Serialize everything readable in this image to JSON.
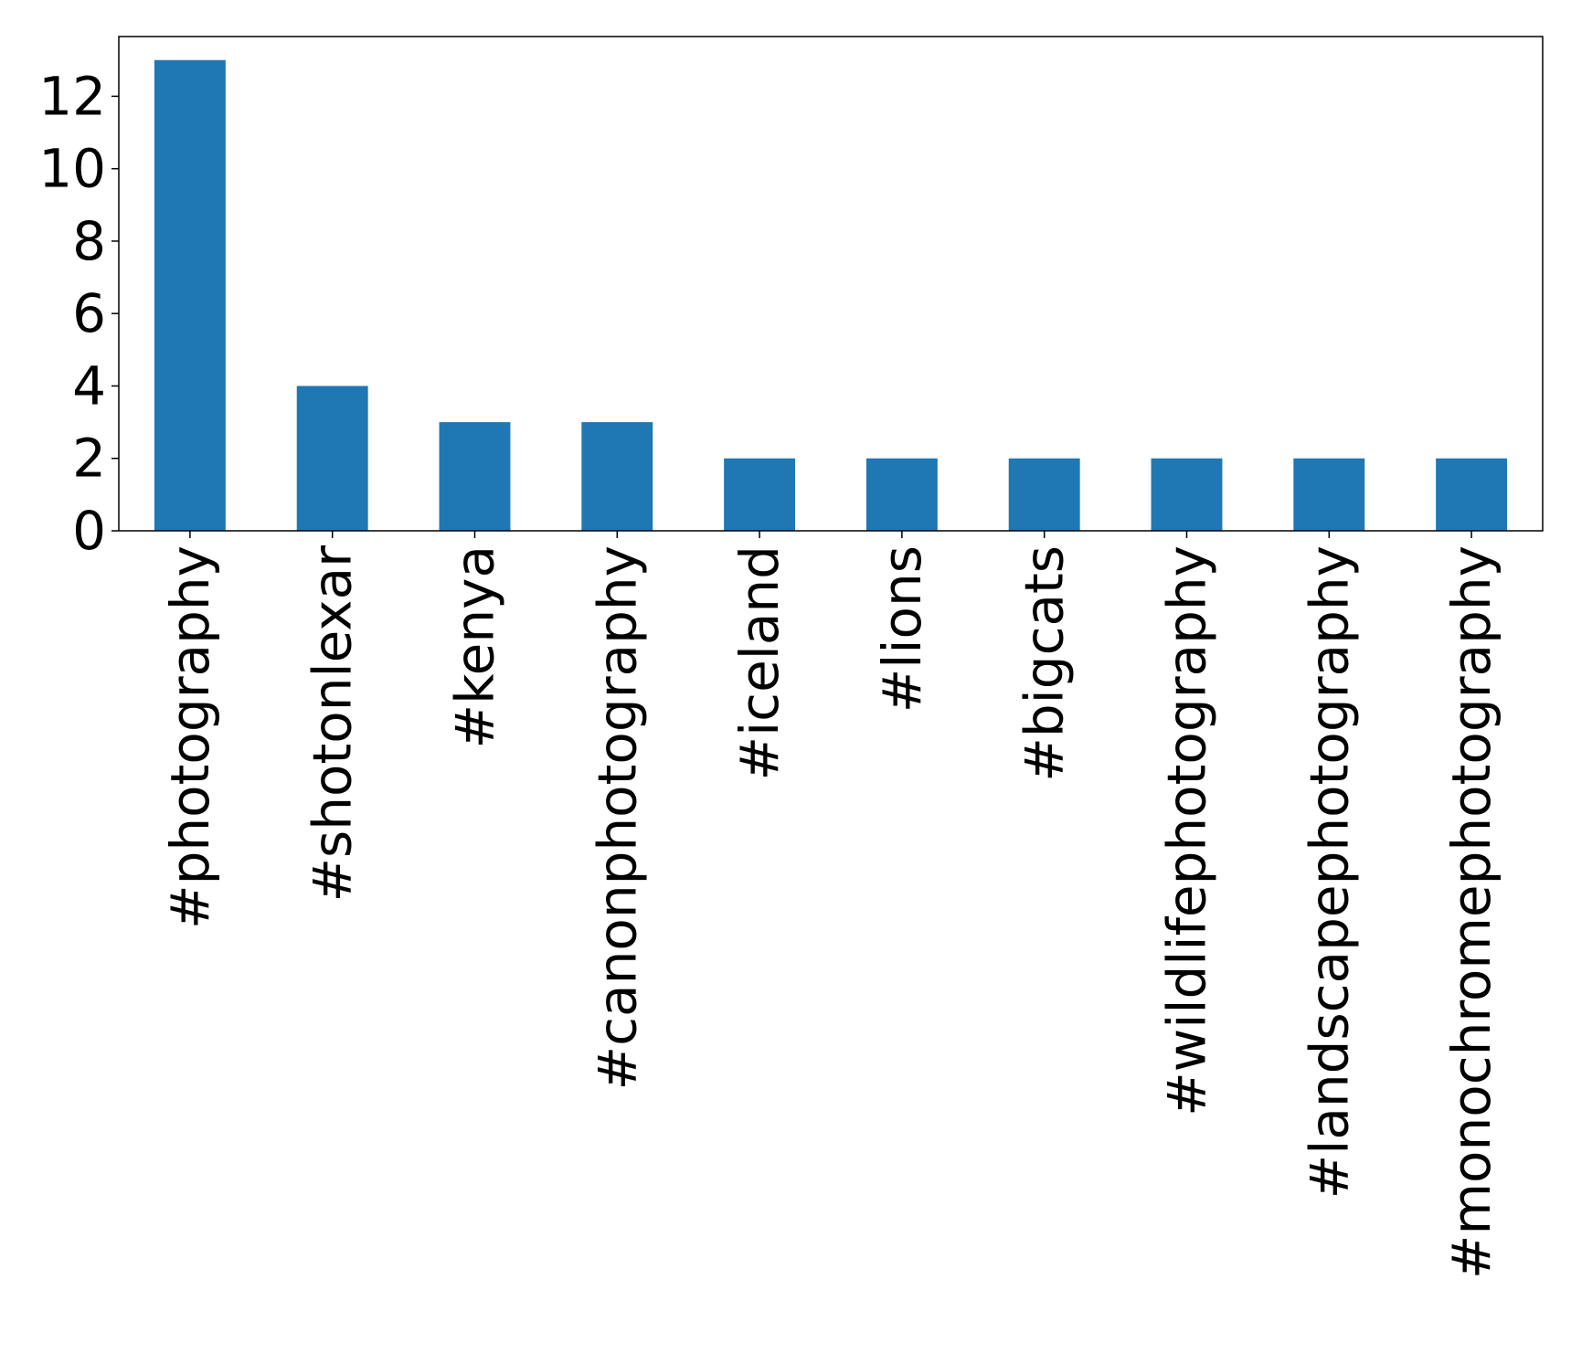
{
  "chart_data": {
    "type": "bar",
    "categories": [
      "#photography",
      "#shotonlexar",
      "#kenya",
      "#canonphotography",
      "#iceland",
      "#lions",
      "#bigcats",
      "#wildlifephotography",
      "#landscapephotography",
      "#monochromephotography"
    ],
    "values": [
      13,
      4,
      3,
      3,
      2,
      2,
      2,
      2,
      2,
      2
    ],
    "title": "",
    "xlabel": "",
    "ylabel": "",
    "ylim": [
      0,
      13.65
    ],
    "yticks": [
      0,
      2,
      4,
      6,
      8,
      10,
      12
    ],
    "bar_color": "#1f77b4",
    "grid": false,
    "legend": "none"
  }
}
